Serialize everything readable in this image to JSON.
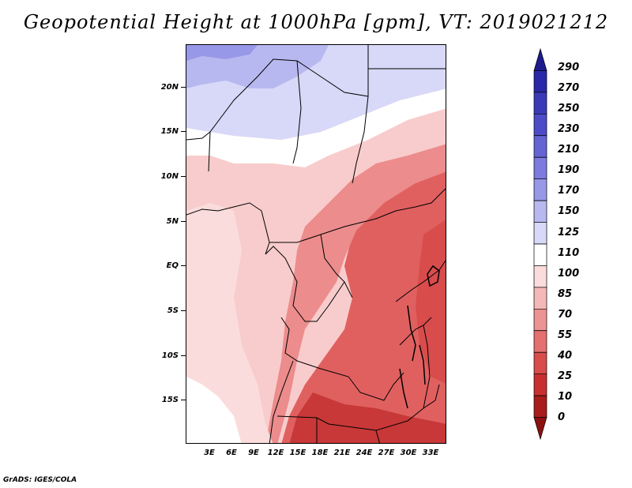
{
  "title": "Geopotential Height at 1000hPa [gpm], VT: 2019021212",
  "lat_labels": [
    "20N",
    "15N",
    "10N",
    "5N",
    "EQ",
    "5S",
    "10S",
    "15S"
  ],
  "lon_labels": [
    "3E",
    "6E",
    "9E",
    "12E",
    "15E",
    "18E",
    "21E",
    "24E",
    "27E",
    "30E",
    "33E"
  ],
  "colorbar": {
    "levels": [
      "290",
      "270",
      "250",
      "230",
      "210",
      "190",
      "170",
      "150",
      "125",
      "110",
      "100",
      "85",
      "70",
      "55",
      "40",
      "25",
      "10",
      "0"
    ],
    "colors_top_to_bottom": [
      "#1c1c8c",
      "#2828a8",
      "#3a3ab8",
      "#4c4cc8",
      "#6464d4",
      "#7c7cde",
      "#9898e8",
      "#b8b8f0",
      "#d8d8f8",
      "#ffffff",
      "#fadcdc",
      "#f4b8b8",
      "#ec9494",
      "#e47070",
      "#d84c4c",
      "#c83030",
      "#a81c1c",
      "#8c1010"
    ]
  },
  "footer": "GrADS: IGES/COLA"
}
